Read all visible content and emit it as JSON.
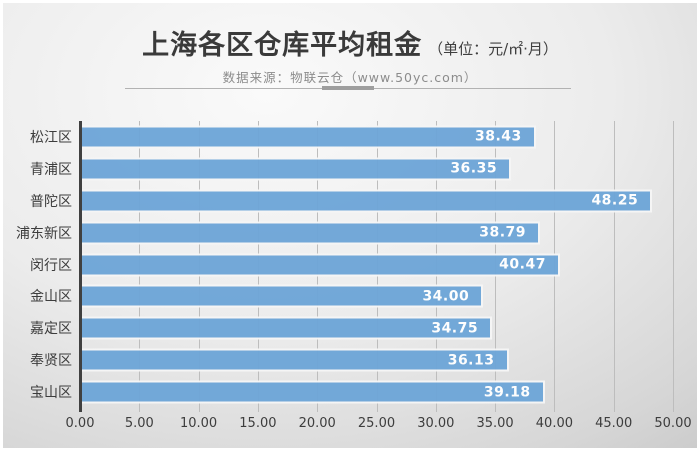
{
  "header": {
    "title": "上海各区仓库平均租金",
    "unit": "（单位：元/㎡·月）",
    "source": "数据来源：物联云仓（www.50yc.com）"
  },
  "chart_data": {
    "type": "bar",
    "orientation": "horizontal",
    "title": "上海各区仓库平均租金",
    "subtitle": "数据来源：物联云仓（www.50yc.com）",
    "unit": "元/㎡·月",
    "categories": [
      "松江区",
      "青浦区",
      "普陀区",
      "浦东新区",
      "闵行区",
      "金山区",
      "嘉定区",
      "奉贤区",
      "宝山区"
    ],
    "values": [
      38.43,
      36.35,
      48.25,
      38.79,
      40.47,
      34.0,
      34.75,
      36.13,
      39.18
    ],
    "value_labels": [
      "38.43",
      "36.35",
      "48.25",
      "38.79",
      "40.47",
      "34.00",
      "34.75",
      "36.13",
      "39.18"
    ],
    "xlim": [
      0,
      50
    ],
    "x_tick_step": 5,
    "x_ticks": [
      "0.00",
      "5.00",
      "10.00",
      "15.00",
      "20.00",
      "25.00",
      "30.00",
      "35.00",
      "40.00",
      "45.00",
      "50.00"
    ],
    "grid": true,
    "legend": "none",
    "colors": {
      "bar": "#6ea6d8",
      "bar_border": "#f6f6f6",
      "value_text": "#ffffff",
      "axis_line": "#404040",
      "gridline": "#bdbdbd",
      "label_text": "#3d3d3d"
    }
  }
}
